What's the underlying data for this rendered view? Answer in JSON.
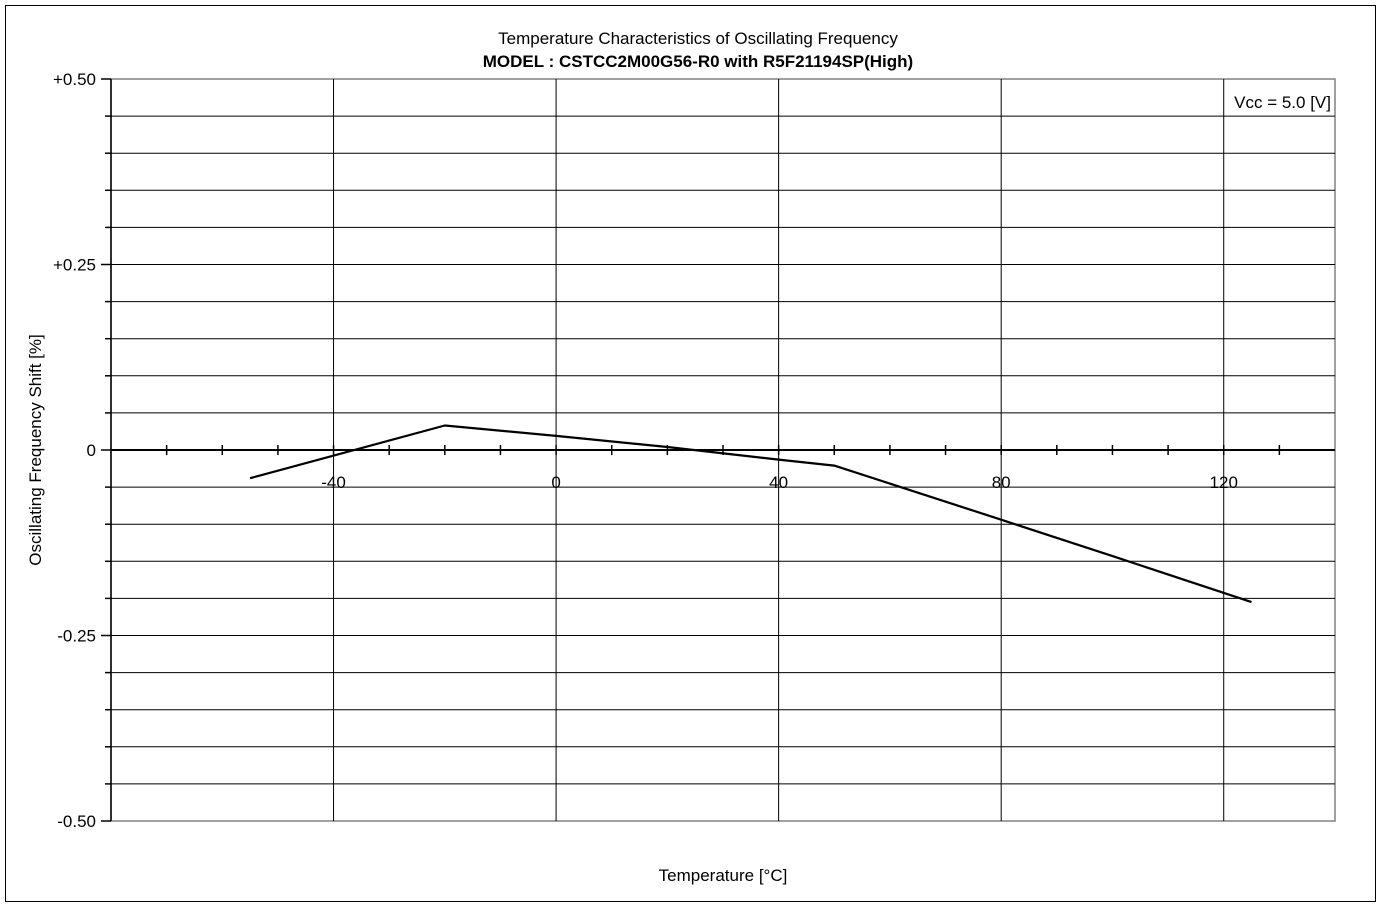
{
  "chart_data": {
    "type": "line",
    "title": "Temperature Characteristics of Oscillating Frequency",
    "subtitle": "MODEL : CSTCC2M00G56-R0 with R5F21194SP(High)",
    "xlabel": "Temperature [°C]",
    "ylabel": "Oscillating Frequency Shift [%]",
    "annotation": "Vcc = 5.0 [V]",
    "xlim": [
      -80,
      140
    ],
    "ylim": [
      -0.5,
      0.5
    ],
    "x_ticks": [
      -40,
      0,
      40,
      80,
      120
    ],
    "x_tick_labels": [
      "-40",
      "0",
      "40",
      "80",
      "120"
    ],
    "y_ticks": [
      0.5,
      0.25,
      0,
      -0.25,
      -0.5
    ],
    "y_tick_labels": [
      "+0.50",
      "+0.25",
      "0",
      "-0.25",
      "-0.50"
    ],
    "grid": true,
    "series": [
      {
        "x": [
          -55,
          -20,
          0,
          20,
          40,
          50,
          80,
          100,
          125
        ],
        "values": [
          -0.038,
          0.033,
          0.019,
          0.004,
          -0.013,
          -0.021,
          -0.094,
          -0.143,
          -0.205
        ]
      }
    ]
  }
}
